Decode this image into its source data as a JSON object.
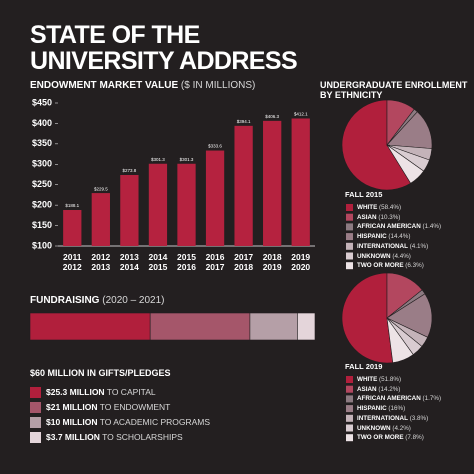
{
  "title": "STATE OF THE UNIVERSITY ADDRESS",
  "chart_data": [
    {
      "type": "bar",
      "title": "ENDOWMENT MARKET VALUE",
      "subtitle": "($ IN MILLIONS)",
      "categories": [
        "2011 2012",
        "2012 2013",
        "2013 2014",
        "2014 2015",
        "2015 2016",
        "2016 2017",
        "2017 2018",
        "2018 2019",
        "2019 2020"
      ],
      "values": [
        188.1,
        229.5,
        273.8,
        301.3,
        301.3,
        333.6,
        394.1,
        406.3,
        412.1
      ],
      "value_labels": [
        "$188.1",
        "$229.5",
        "$273.8",
        "$301.3",
        "$301.3",
        "$333.6",
        "$394.1",
        "$406.3",
        "$412.1"
      ],
      "color": "#b5223f",
      "ylim": [
        100,
        450
      ],
      "yticks": [
        {
          "value": 100,
          "label": "$100"
        },
        {
          "value": 150,
          "label": "$150"
        },
        {
          "value": 200,
          "label": "$200"
        },
        {
          "value": 250,
          "label": "$250"
        },
        {
          "value": 300,
          "label": "$300"
        },
        {
          "value": 350,
          "label": "$350"
        },
        {
          "value": 400,
          "label": "$400"
        },
        {
          "value": 450,
          "label": "$450"
        }
      ]
    },
    {
      "type": "stacked-bar",
      "title": "FUNDRAISING",
      "subtitle": "(2020 – 2021)",
      "annotation": "$60 MILLION IN GIFTS/PLEDGES",
      "xlim": [
        0,
        60
      ],
      "series": [
        {
          "name": "TO CAPITAL",
          "color": "#b11f3c",
          "values": [
            25.3
          ],
          "value_labels": [
            "$25.3 MILLION"
          ]
        },
        {
          "name": "TO ENDOWMENT",
          "color": "#a5566a",
          "values": [
            21
          ],
          "value_labels": [
            "$21 MILLION"
          ]
        },
        {
          "name": "TO ACADEMIC PROGRAMS",
          "color": "#b59fa7",
          "values": [
            10
          ],
          "value_labels": [
            "$10 MILLION"
          ]
        },
        {
          "name": "TO SCHOLARSHIPS",
          "color": "#e4d5da",
          "values": [
            3.7
          ],
          "value_labels": [
            "$3.7 MILLION"
          ]
        }
      ]
    },
    {
      "type": "pie",
      "title": "UNDERGRADUATE ENROLLMENT BY ETHNICITY",
      "subtitle": "FALL 2015",
      "categories": [
        "WHITE",
        "ASIAN",
        "AFRICAN AMERICAN",
        "HISPANIC",
        "INTERNATIONAL",
        "UNKNOWN",
        "TWO OR MORE"
      ],
      "values": [
        58.4,
        10.3,
        1.4,
        14.4,
        4.1,
        4.4,
        6.3
      ],
      "value_labels": [
        "(58.4%)",
        "(10.3%)",
        "(1.4%)",
        "(14.4%)",
        "(4.1%)",
        "(4.4%)",
        "(6.3%)"
      ],
      "colors": [
        "#b11f3c",
        "#b3475f",
        "#8c7a81",
        "#9a7d87",
        "#c4b3b9",
        "#d9ccd1",
        "#ede3e6"
      ]
    },
    {
      "type": "pie",
      "subtitle": "FALL 2019",
      "categories": [
        "WHITE",
        "ASIAN",
        "AFRICAN AMERICAN",
        "HISPANIC",
        "INTERNATIONAL",
        "UNKNOWN",
        "TWO OR MORE"
      ],
      "values": [
        51.8,
        14.2,
        1.7,
        16,
        3.8,
        4.2,
        7.8
      ],
      "value_labels": [
        "(51.8%)",
        "(14.2%)",
        "(1.7%)",
        "(16%)",
        "(3.8%)",
        "(4.2%)",
        "(7.8%)"
      ],
      "colors": [
        "#b11f3c",
        "#b3475f",
        "#8c7a81",
        "#9a7d87",
        "#c4b3b9",
        "#d9ccd1",
        "#ede3e6"
      ]
    }
  ]
}
